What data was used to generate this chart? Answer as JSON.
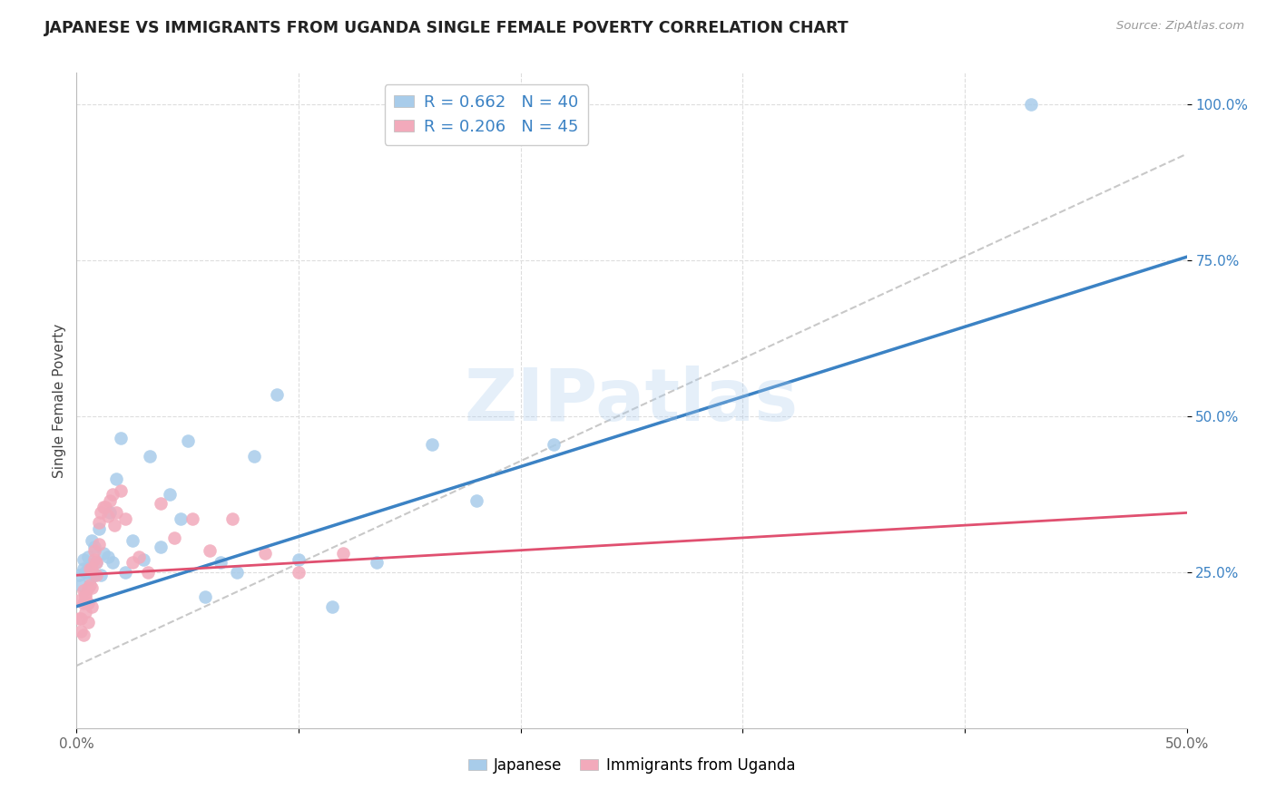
{
  "title": "JAPANESE VS IMMIGRANTS FROM UGANDA SINGLE FEMALE POVERTY CORRELATION CHART",
  "source": "Source: ZipAtlas.com",
  "ylabel": "Single Female Poverty",
  "xlim": [
    0.0,
    0.5
  ],
  "ylim": [
    0.0,
    1.05
  ],
  "xticks": [
    0.0,
    0.1,
    0.2,
    0.3,
    0.4,
    0.5
  ],
  "xticklabels": [
    "0.0%",
    "",
    "",
    "",
    "",
    "50.0%"
  ],
  "yticks": [
    0.25,
    0.5,
    0.75,
    1.0
  ],
  "yticklabels": [
    "25.0%",
    "50.0%",
    "75.0%",
    "100.0%"
  ],
  "blue_color": "#A8CCEA",
  "pink_color": "#F2AABB",
  "blue_line_color": "#3B82C4",
  "pink_line_color": "#E05070",
  "dashed_color": "#BBBBBB",
  "watermark": "ZIPatlas",
  "legend_label_blue": "R = 0.662   N = 40",
  "legend_label_pink": "R = 0.206   N = 45",
  "bottom_legend_blue": "Japanese",
  "bottom_legend_pink": "Immigrants from Uganda",
  "japanese_x": [
    0.001,
    0.002,
    0.003,
    0.003,
    0.004,
    0.005,
    0.005,
    0.006,
    0.007,
    0.008,
    0.008,
    0.009,
    0.01,
    0.011,
    0.012,
    0.014,
    0.015,
    0.016,
    0.018,
    0.02,
    0.022,
    0.025,
    0.03,
    0.033,
    0.038,
    0.042,
    0.047,
    0.05,
    0.058,
    0.065,
    0.072,
    0.08,
    0.09,
    0.1,
    0.115,
    0.135,
    0.16,
    0.18,
    0.215,
    0.43
  ],
  "japanese_y": [
    0.245,
    0.23,
    0.255,
    0.27,
    0.25,
    0.275,
    0.255,
    0.24,
    0.3,
    0.245,
    0.29,
    0.265,
    0.32,
    0.245,
    0.28,
    0.275,
    0.345,
    0.265,
    0.4,
    0.465,
    0.25,
    0.3,
    0.27,
    0.435,
    0.29,
    0.375,
    0.335,
    0.46,
    0.21,
    0.265,
    0.25,
    0.435,
    0.535,
    0.27,
    0.195,
    0.265,
    0.455,
    0.365,
    0.455,
    1.0
  ],
  "uganda_x": [
    0.001,
    0.001,
    0.002,
    0.002,
    0.003,
    0.003,
    0.003,
    0.004,
    0.004,
    0.004,
    0.005,
    0.005,
    0.005,
    0.006,
    0.006,
    0.007,
    0.007,
    0.007,
    0.008,
    0.008,
    0.009,
    0.009,
    0.01,
    0.01,
    0.011,
    0.012,
    0.013,
    0.014,
    0.015,
    0.016,
    0.017,
    0.018,
    0.02,
    0.022,
    0.025,
    0.028,
    0.032,
    0.038,
    0.044,
    0.052,
    0.06,
    0.07,
    0.085,
    0.1,
    0.12
  ],
  "uganda_y": [
    0.205,
    0.175,
    0.175,
    0.155,
    0.22,
    0.2,
    0.15,
    0.215,
    0.185,
    0.21,
    0.225,
    0.2,
    0.17,
    0.255,
    0.23,
    0.255,
    0.225,
    0.195,
    0.27,
    0.285,
    0.265,
    0.245,
    0.33,
    0.295,
    0.345,
    0.355,
    0.355,
    0.34,
    0.365,
    0.375,
    0.325,
    0.345,
    0.38,
    0.335,
    0.265,
    0.275,
    0.25,
    0.36,
    0.305,
    0.335,
    0.285,
    0.335,
    0.28,
    0.25,
    0.28
  ],
  "blue_trendline": [
    0.195,
    0.755
  ],
  "pink_trendline": [
    0.245,
    0.345
  ],
  "dashed_line": [
    0.1,
    0.92
  ]
}
